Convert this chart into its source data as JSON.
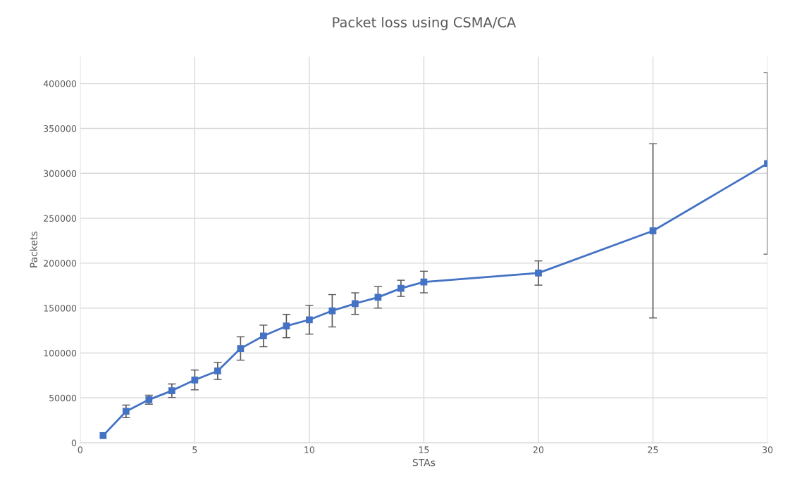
{
  "chart_data": {
    "type": "line",
    "title": "Packet loss using CSMA/CA",
    "xlabel": "STAs",
    "ylabel": "Packets",
    "x": [
      1,
      2,
      3,
      4,
      5,
      6,
      7,
      8,
      9,
      10,
      11,
      12,
      13,
      14,
      15,
      20,
      25,
      30
    ],
    "series": [
      {
        "color": "#4472c4",
        "values": [
          8000,
          35000,
          48000,
          58000,
          70000,
          80000,
          105000,
          119000,
          130000,
          137000,
          147000,
          155000,
          162000,
          172000,
          179000,
          189000,
          236000,
          311000
        ],
        "errors": [
          null,
          7000,
          5000,
          7500,
          11000,
          9500,
          13000,
          12000,
          13000,
          16000,
          18000,
          12000,
          12000,
          9000,
          12000,
          13500,
          97000,
          101000
        ]
      }
    ],
    "xlim": [
      0,
      30
    ],
    "xticks": [
      0,
      5,
      10,
      15,
      20,
      25,
      30
    ],
    "ylim": [
      0,
      430000
    ],
    "yticks": [
      0,
      50000,
      100000,
      150000,
      200000,
      250000,
      300000,
      350000,
      400000
    ],
    "grid": true,
    "marker": "square",
    "line_style": "solid",
    "legend": false
  }
}
